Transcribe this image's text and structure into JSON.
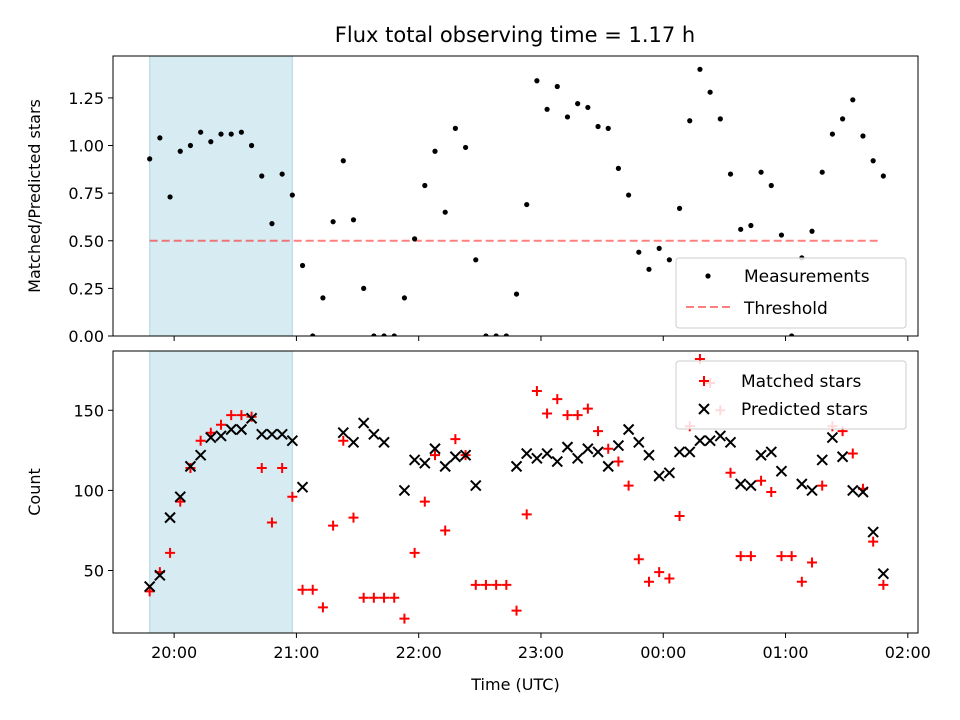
{
  "figure": {
    "title": "Flux total observing time = 1.17 h"
  },
  "colors": {
    "highlight": "#add8e6",
    "measurement": "#000000",
    "threshold": "#ff0000",
    "matched": "#ff0000",
    "predicted": "#000000"
  },
  "chart_data": [
    {
      "type": "scatter",
      "ylabel": "Matched/Predicted stars",
      "xlabel": "",
      "x_is_time": true,
      "xlim": [
        "19:30",
        "02:05"
      ],
      "ylim": [
        0,
        1.47
      ],
      "yticks": [
        0.0,
        0.25,
        0.5,
        0.75,
        1.0,
        1.25
      ],
      "ytick_labels": [
        "0.00",
        "0.25",
        "0.50",
        "0.75",
        "1.00",
        "1.25"
      ],
      "shaded_region": [
        "19:48",
        "20:58"
      ],
      "threshold": {
        "value": 0.5,
        "from": "19:48",
        "to": "01:47"
      },
      "legend": {
        "position": "lower right",
        "entries": [
          "Measurements",
          "Threshold"
        ]
      },
      "series": [
        {
          "name": "Measurements",
          "points": [
            [
              "19:48",
              0.93
            ],
            [
              "19:53",
              1.04
            ],
            [
              "19:58",
              0.73
            ],
            [
              "20:03",
              0.97
            ],
            [
              "20:08",
              1.0
            ],
            [
              "20:13",
              1.07
            ],
            [
              "20:18",
              1.02
            ],
            [
              "20:23",
              1.06
            ],
            [
              "20:28",
              1.06
            ],
            [
              "20:33",
              1.07
            ],
            [
              "20:38",
              1.0
            ],
            [
              "20:43",
              0.84
            ],
            [
              "20:48",
              0.59
            ],
            [
              "20:53",
              0.85
            ],
            [
              "20:58",
              0.74
            ],
            [
              "21:03",
              0.37
            ],
            [
              "21:08",
              0.0
            ],
            [
              "21:13",
              0.2
            ],
            [
              "21:18",
              0.6
            ],
            [
              "21:23",
              0.92
            ],
            [
              "21:28",
              0.61
            ],
            [
              "21:33",
              0.25
            ],
            [
              "21:38",
              0.0
            ],
            [
              "21:43",
              0.0
            ],
            [
              "21:48",
              0.0
            ],
            [
              "21:53",
              0.2
            ],
            [
              "21:58",
              0.51
            ],
            [
              "22:03",
              0.79
            ],
            [
              "22:08",
              0.97
            ],
            [
              "22:13",
              0.65
            ],
            [
              "22:18",
              1.09
            ],
            [
              "22:23",
              0.99
            ],
            [
              "22:28",
              0.4
            ],
            [
              "22:33",
              0.0
            ],
            [
              "22:38",
              0.0
            ],
            [
              "22:43",
              0.0
            ],
            [
              "22:48",
              0.22
            ],
            [
              "22:53",
              0.69
            ],
            [
              "22:58",
              1.34
            ],
            [
              "23:03",
              1.19
            ],
            [
              "23:08",
              1.31
            ],
            [
              "23:13",
              1.15
            ],
            [
              "23:18",
              1.22
            ],
            [
              "23:23",
              1.2
            ],
            [
              "23:28",
              1.1
            ],
            [
              "23:33",
              1.09
            ],
            [
              "23:38",
              0.88
            ],
            [
              "23:43",
              0.74
            ],
            [
              "23:48",
              0.44
            ],
            [
              "23:53",
              0.35
            ],
            [
              "23:58",
              0.46
            ],
            [
              "00:03",
              0.4
            ],
            [
              "00:08",
              0.67
            ],
            [
              "00:13",
              1.13
            ],
            [
              "00:18",
              1.4
            ],
            [
              "00:23",
              1.28
            ],
            [
              "00:28",
              1.14
            ],
            [
              "00:33",
              0.85
            ],
            [
              "00:38",
              0.56
            ],
            [
              "00:43",
              0.58
            ],
            [
              "00:48",
              0.86
            ],
            [
              "00:53",
              0.79
            ],
            [
              "00:58",
              0.53
            ],
            [
              "01:03",
              0.0
            ],
            [
              "01:08",
              0.41
            ],
            [
              "01:13",
              0.55
            ],
            [
              "01:18",
              0.86
            ],
            [
              "01:23",
              1.06
            ],
            [
              "01:28",
              1.14
            ],
            [
              "01:33",
              1.24
            ],
            [
              "01:38",
              1.05
            ],
            [
              "01:43",
              0.92
            ],
            [
              "01:48",
              0.84
            ]
          ]
        }
      ]
    },
    {
      "type": "scatter",
      "ylabel": "Count",
      "xlabel": "Time (UTC)",
      "x_is_time": true,
      "xlim": [
        "19:30",
        "02:05"
      ],
      "ylim": [
        11,
        187
      ],
      "yticks": [
        50,
        100,
        150
      ],
      "ytick_labels": [
        "50",
        "100",
        "150"
      ],
      "xtick_labels": [
        "20:00",
        "21:00",
        "22:00",
        "23:00",
        "00:00",
        "01:00",
        "02:00"
      ],
      "shaded_region": [
        "19:48",
        "20:58"
      ],
      "legend": {
        "position": "upper right",
        "entries": [
          "Matched stars",
          "Predicted stars"
        ]
      },
      "series": [
        {
          "name": "Matched stars",
          "marker": "+",
          "points": [
            [
              "19:48",
              37
            ],
            [
              "19:53",
              49
            ],
            [
              "19:58",
              61
            ],
            [
              "20:03",
              93
            ],
            [
              "20:08",
              114
            ],
            [
              "20:13",
              131
            ],
            [
              "20:18",
              136
            ],
            [
              "20:23",
              141
            ],
            [
              "20:28",
              147
            ],
            [
              "20:33",
              147
            ],
            [
              "20:38",
              146
            ],
            [
              "20:43",
              114
            ],
            [
              "20:48",
              80
            ],
            [
              "20:53",
              114
            ],
            [
              "20:58",
              96
            ],
            [
              "21:03",
              38
            ],
            [
              "21:08",
              38
            ],
            [
              "21:13",
              27
            ],
            [
              "21:18",
              78
            ],
            [
              "21:23",
              131
            ],
            [
              "21:28",
              83
            ],
            [
              "21:33",
              33
            ],
            [
              "21:38",
              33
            ],
            [
              "21:43",
              33
            ],
            [
              "21:48",
              33
            ],
            [
              "21:53",
              20
            ],
            [
              "21:58",
              61
            ],
            [
              "22:03",
              93
            ],
            [
              "22:08",
              122
            ],
            [
              "22:13",
              75
            ],
            [
              "22:18",
              132
            ],
            [
              "22:23",
              122
            ],
            [
              "22:28",
              41
            ],
            [
              "22:33",
              41
            ],
            [
              "22:38",
              41
            ],
            [
              "22:43",
              41
            ],
            [
              "22:48",
              25
            ],
            [
              "22:53",
              85
            ],
            [
              "22:58",
              162
            ],
            [
              "23:03",
              148
            ],
            [
              "23:08",
              157
            ],
            [
              "23:13",
              147
            ],
            [
              "23:18",
              147
            ],
            [
              "23:23",
              151
            ],
            [
              "23:28",
              137
            ],
            [
              "23:33",
              126
            ],
            [
              "23:38",
              118
            ],
            [
              "23:43",
              103
            ],
            [
              "23:48",
              57
            ],
            [
              "23:53",
              43
            ],
            [
              "23:58",
              49
            ],
            [
              "00:03",
              45
            ],
            [
              "00:08",
              84
            ],
            [
              "00:13",
              140
            ],
            [
              "00:18",
              182
            ],
            [
              "00:23",
              167
            ],
            [
              "00:28",
              150
            ],
            [
              "00:33",
              111
            ],
            [
              "00:38",
              59
            ],
            [
              "00:43",
              59
            ],
            [
              "00:48",
              106
            ],
            [
              "00:53",
              99
            ],
            [
              "00:58",
              59
            ],
            [
              "01:03",
              59
            ],
            [
              "01:08",
              43
            ],
            [
              "01:13",
              55
            ],
            [
              "01:18",
              103
            ],
            [
              "01:23",
              140
            ],
            [
              "01:28",
              137
            ],
            [
              "01:33",
              123
            ],
            [
              "01:38",
              101
            ],
            [
              "01:43",
              68
            ],
            [
              "01:48",
              41
            ]
          ]
        },
        {
          "name": "Predicted stars",
          "marker": "x",
          "points": [
            [
              "19:48",
              40
            ],
            [
              "19:53",
              47
            ],
            [
              "19:58",
              83
            ],
            [
              "20:03",
              96
            ],
            [
              "20:08",
              115
            ],
            [
              "20:13",
              122
            ],
            [
              "20:18",
              133
            ],
            [
              "20:23",
              134
            ],
            [
              "20:28",
              138
            ],
            [
              "20:33",
              138
            ],
            [
              "20:38",
              145
            ],
            [
              "20:43",
              135
            ],
            [
              "20:48",
              135
            ],
            [
              "20:53",
              135
            ],
            [
              "20:58",
              131
            ],
            [
              "21:03",
              102
            ],
            [
              "21:23",
              136
            ],
            [
              "21:28",
              130
            ],
            [
              "21:33",
              142
            ],
            [
              "21:38",
              135
            ],
            [
              "21:43",
              130
            ],
            [
              "21:53",
              100
            ],
            [
              "21:58",
              119
            ],
            [
              "22:03",
              117
            ],
            [
              "22:08",
              126
            ],
            [
              "22:13",
              115
            ],
            [
              "22:18",
              121
            ],
            [
              "22:23",
              122
            ],
            [
              "22:28",
              103
            ],
            [
              "22:48",
              115
            ],
            [
              "22:53",
              123
            ],
            [
              "22:58",
              120
            ],
            [
              "23:03",
              123
            ],
            [
              "23:08",
              118
            ],
            [
              "23:13",
              127
            ],
            [
              "23:18",
              120
            ],
            [
              "23:23",
              126
            ],
            [
              "23:28",
              124
            ],
            [
              "23:33",
              115
            ],
            [
              "23:38",
              128
            ],
            [
              "23:43",
              138
            ],
            [
              "23:48",
              130
            ],
            [
              "23:53",
              122
            ],
            [
              "23:58",
              109
            ],
            [
              "00:03",
              111
            ],
            [
              "00:08",
              124
            ],
            [
              "00:13",
              124
            ],
            [
              "00:18",
              131
            ],
            [
              "00:23",
              131
            ],
            [
              "00:28",
              134
            ],
            [
              "00:33",
              130
            ],
            [
              "00:38",
              104
            ],
            [
              "00:43",
              103
            ],
            [
              "00:48",
              122
            ],
            [
              "00:53",
              124
            ],
            [
              "00:58",
              112
            ],
            [
              "01:08",
              104
            ],
            [
              "01:13",
              100
            ],
            [
              "01:18",
              119
            ],
            [
              "01:23",
              133
            ],
            [
              "01:28",
              121
            ],
            [
              "01:33",
              100
            ],
            [
              "01:38",
              99
            ],
            [
              "01:43",
              74
            ],
            [
              "01:48",
              48
            ]
          ]
        }
      ]
    }
  ]
}
